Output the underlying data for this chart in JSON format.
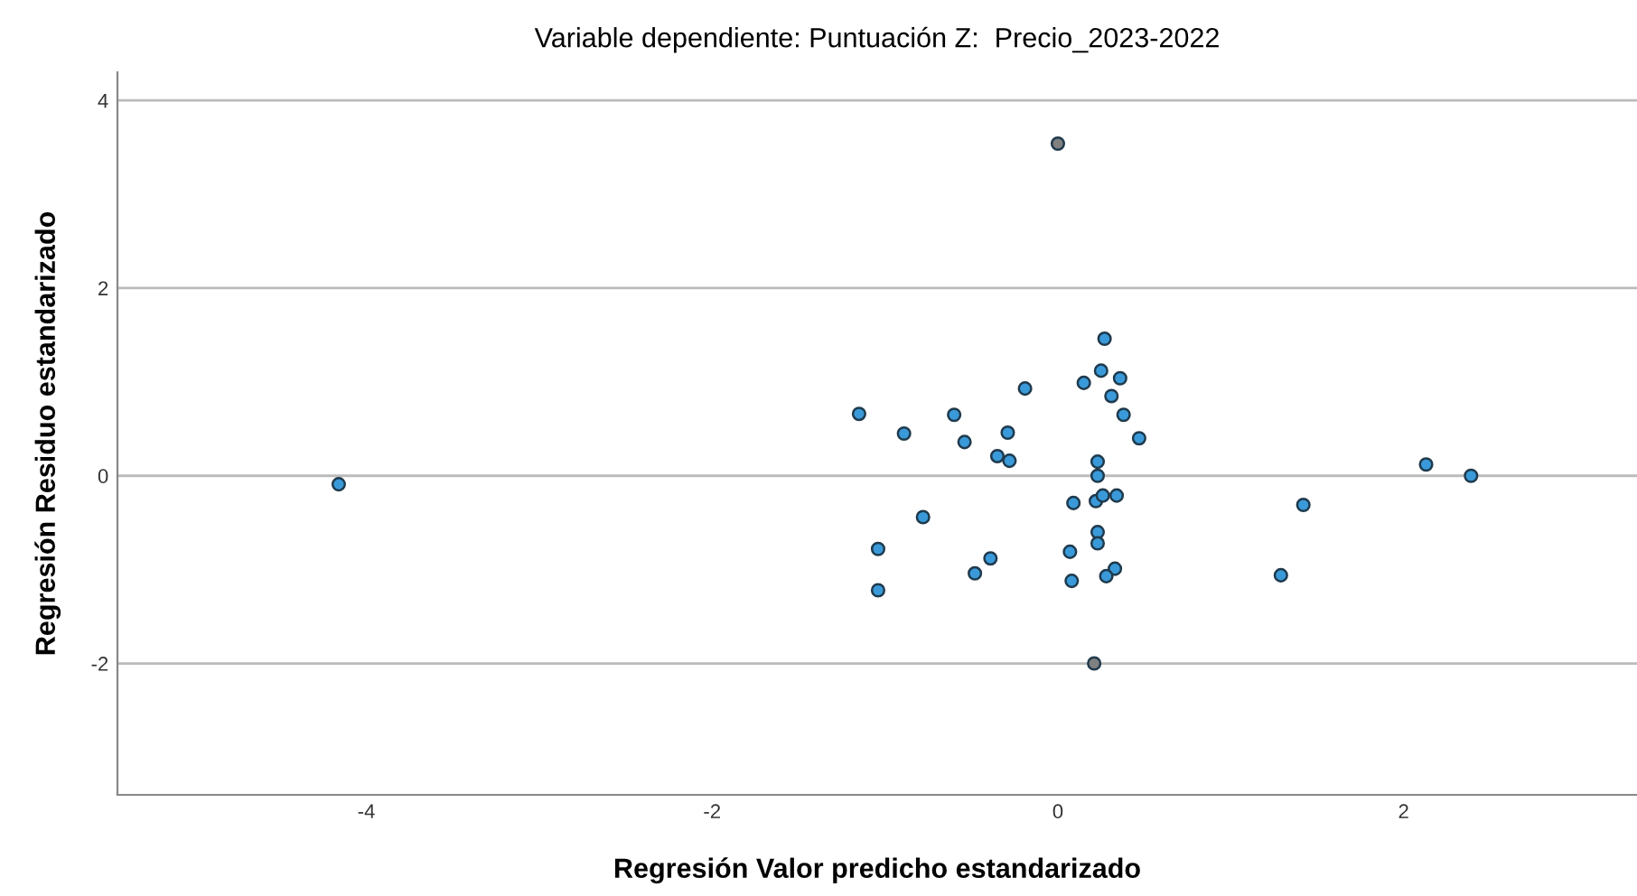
{
  "chart_data": {
    "type": "scatter",
    "title": "Variable dependiente: Puntuación Z:  Precio_2023-2022",
    "xlabel": "Regresión Valor predicho estandarizado",
    "ylabel": "Regresión Residuo estandarizado",
    "xlim": [
      -5.44,
      3.35
    ],
    "ylim": [
      -3.4,
      4.3
    ],
    "xticks": [
      -4,
      -2,
      0,
      2
    ],
    "yticks": [
      -2,
      0,
      2,
      4
    ],
    "grid": "y",
    "marker": "circle",
    "legend": false,
    "series": [
      {
        "color": "#3a9ad9",
        "x": [
          0.27,
          0.25,
          0.15,
          0.36,
          -0.19,
          0.31,
          0.38,
          0.47,
          -1.15,
          -0.6,
          -0.89,
          -0.29,
          -0.54,
          -0.35,
          -0.28,
          0.23,
          0.23,
          0.22,
          0.26,
          0.34,
          0.09,
          -0.78,
          0.23,
          0.23,
          -1.04,
          0.07,
          -0.39,
          0.33,
          0.28,
          -0.48,
          0.08,
          -1.04,
          2.13,
          2.39,
          1.42,
          1.29,
          -4.16
        ],
        "values": [
          1.46,
          1.12,
          0.99,
          1.04,
          0.93,
          0.85,
          0.65,
          0.4,
          0.66,
          0.65,
          0.45,
          0.46,
          0.36,
          0.21,
          0.16,
          0.15,
          0.0,
          -0.27,
          -0.21,
          -0.21,
          -0.29,
          -0.44,
          -0.6,
          -0.72,
          -0.78,
          -0.81,
          -0.88,
          -0.99,
          -1.07,
          -1.04,
          -1.12,
          -1.22,
          0.12,
          0.0,
          -0.31,
          -1.06,
          -0.09
        ]
      },
      {
        "color": "#808080",
        "x": [
          0.0,
          0.21
        ],
        "values": [
          3.54,
          -2.0
        ]
      }
    ]
  }
}
